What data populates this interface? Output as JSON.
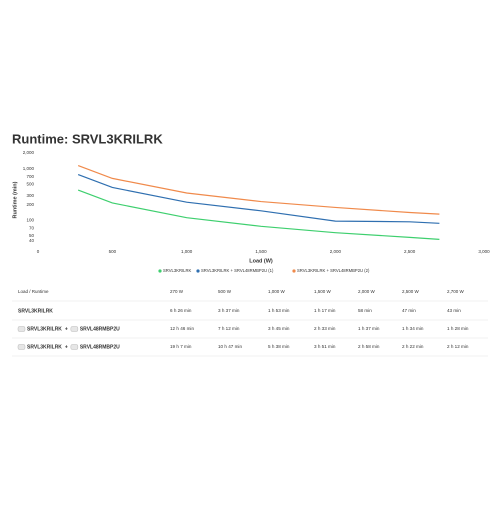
{
  "chart_data": {
    "type": "line",
    "title": "Runtime: SRVL3KRILRK",
    "x_label": "Load (W)",
    "y_label": "Runtime (min)",
    "x": [
      270,
      500,
      1000,
      1500,
      2000,
      2500,
      2700
    ],
    "series": [
      {
        "name": "SRVL3KRILRK",
        "color": "#3ecf6e",
        "values": [
          386,
          217,
          113,
          77,
          58,
          47,
          43
        ]
      },
      {
        "name": "SRVL3KRILRK + SRVL48RMBP2U (1)",
        "color": "#2f6fb0",
        "values": [
          766,
          432,
          225,
          153,
          97,
          94,
          88
        ]
      },
      {
        "name": "SRVL3KRILRK + SRVL48RMBP2U (2)",
        "color": "#f08a4b",
        "values": [
          1147,
          647,
          338,
          231,
          178,
          142,
          132
        ]
      }
    ],
    "xlim": [
      0,
      3000
    ],
    "xticks": [
      0,
      500,
      {
        "value": 1000,
        "label": "1,000"
      },
      {
        "value": 1500,
        "label": "1,500"
      },
      {
        "value": 2000,
        "label": "2,000"
      },
      {
        "value": 2500,
        "label": "2,500"
      },
      {
        "value": 3000,
        "label": "3,000"
      }
    ],
    "ylim": [
      30,
      2000
    ],
    "log_y": true,
    "yticks": [
      {
        "value": 2000,
        "label": "2,000"
      },
      {
        "value": 1000,
        "label": "1,000"
      },
      700,
      500,
      300,
      200,
      100,
      70,
      50,
      40
    ],
    "grid": false,
    "legend": "bottom"
  },
  "table": {
    "header": [
      "Load / Runtime",
      "270 W",
      "500 W",
      "1,000 W",
      "1,500 W",
      "2,000 W",
      "2,500 W",
      "2,700 W"
    ],
    "rows": [
      {
        "label": [
          "SRVL3KRILRK"
        ],
        "cells": [
          "6 h 26 min",
          "3 h 37 min",
          "1 h 53 min",
          "1 h 17 min",
          "58 min",
          "47 min",
          "43 min"
        ]
      },
      {
        "label": [
          "SRVL3KRILRK",
          "+",
          "SRVL48RMBP2U"
        ],
        "cells": [
          "12 h 46 min",
          "7 h 12 min",
          "3 h 45 min",
          "2 h 33 min",
          "1 h 37 min",
          "1 h 34 min",
          "1 h 28 min"
        ]
      },
      {
        "label": [
          "SRVL3KRILRK",
          "+",
          "SRVL48RMBP2U"
        ],
        "cells": [
          "19 h 7 min",
          "10 h 47 min",
          "5 h 38 min",
          "3 h 51 min",
          "2 h 58 min",
          "2 h 22 min",
          "2 h 12 min"
        ]
      }
    ]
  }
}
